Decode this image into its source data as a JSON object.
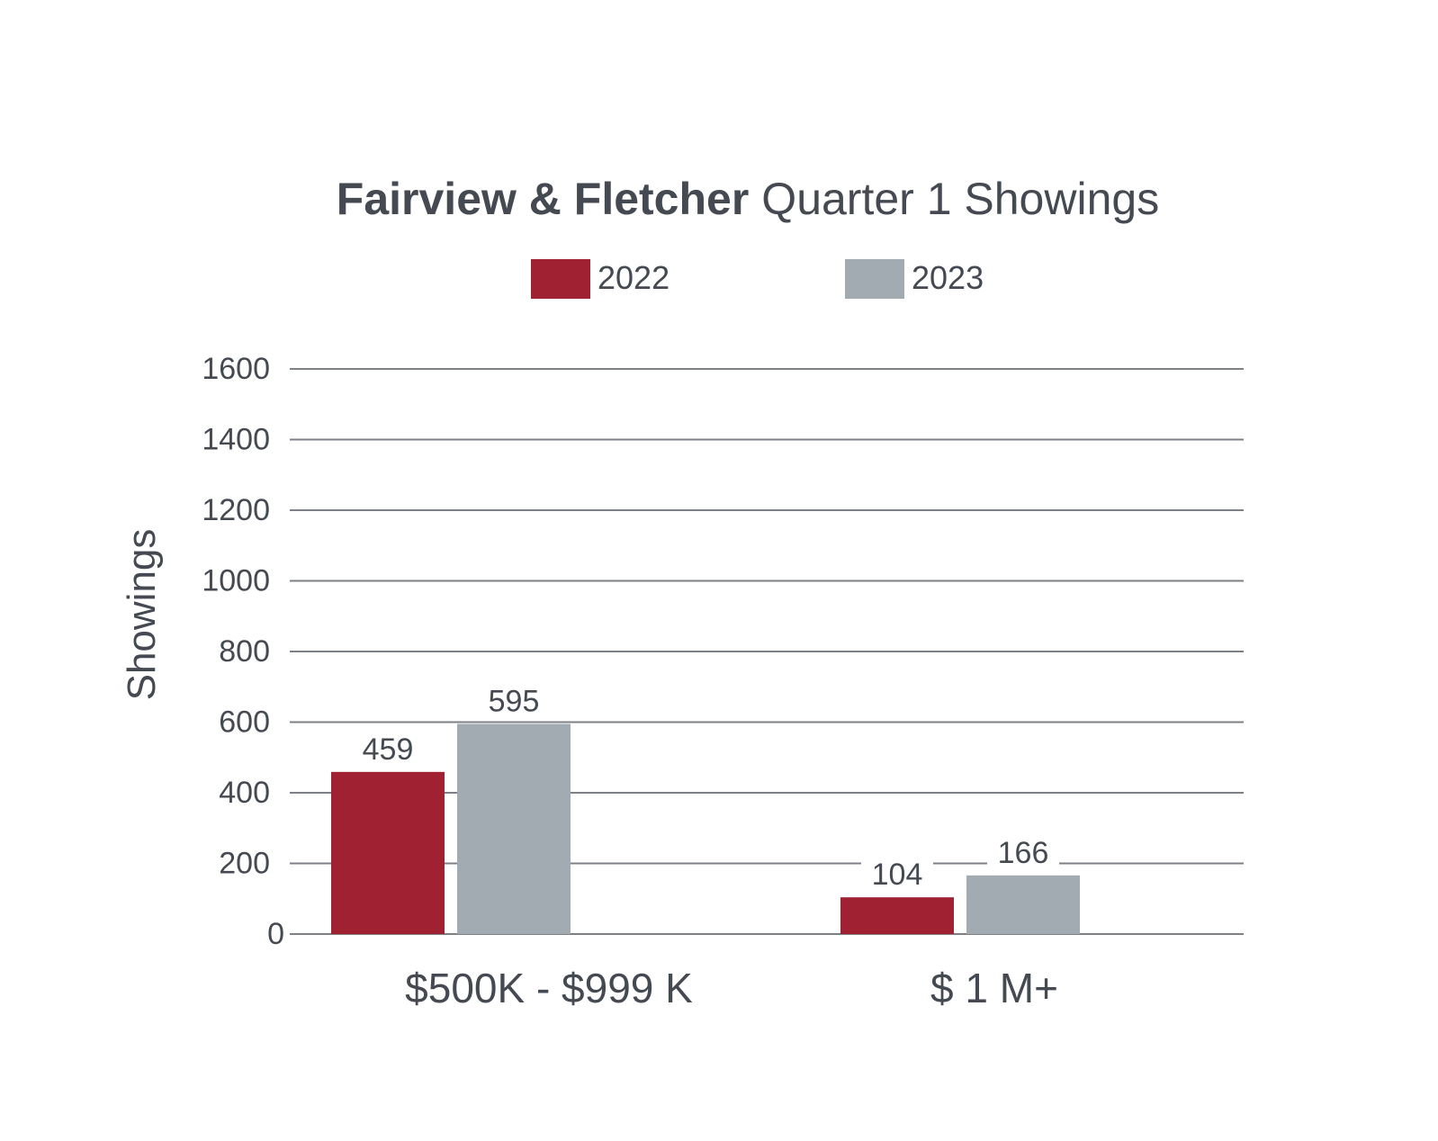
{
  "chart_data": {
    "type": "bar",
    "title_bold": "Fairview & Fletcher",
    "title_rest": "Quarter 1 Showings",
    "ylabel": "Showings",
    "categories": [
      "$500K - $999 K",
      "$ 1 M+"
    ],
    "series": [
      {
        "name": "2022",
        "color": "#a02132",
        "values": [
          459,
          104
        ]
      },
      {
        "name": "2023",
        "color": "#a2abb2",
        "values": [
          595,
          166
        ]
      }
    ],
    "ylim": [
      0,
      1600
    ],
    "yticks": [
      0,
      200,
      400,
      600,
      800,
      1000,
      1200,
      1400,
      1600
    ],
    "grid": true,
    "legend": "top-center"
  }
}
